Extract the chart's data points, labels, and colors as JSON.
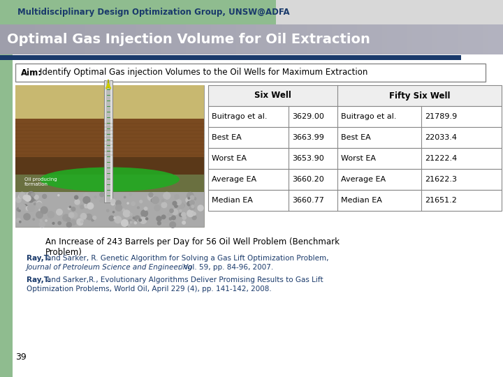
{
  "bg_color": "#ffffff",
  "left_strip_color": "#8fbc8f",
  "top_bar_left_color": "#8fbc8f",
  "top_bar_right_color": "#d0d0d0",
  "title_bar_color": "#a8a8b8",
  "title_text": "Optimal Gas Injection Volume for Oil Extraction",
  "title_color": "#ffffff",
  "top_label": "Multidisciplinary Design Optimization Group, UNSW@ADFA",
  "top_label_color": "#1a3a6b",
  "dark_bar_color": "#1a3a6b",
  "aim_border": "#888888",
  "table_six_well_header": "Six Well",
  "table_fifty_six_header": "Fifty Six Well",
  "table_rows": [
    [
      "Buitrago et al.",
      "3629.00",
      "Buitrago et al.",
      "21789.9"
    ],
    [
      "Best EA",
      "3663.99",
      "Best EA",
      "22033.4"
    ],
    [
      "Worst EA",
      "3653.90",
      "Worst EA",
      "21222.4"
    ],
    [
      "Average EA",
      "3660.20",
      "Average EA",
      "21622.3"
    ],
    [
      "Median EA",
      "3660.77",
      "Median EA",
      "21651.2"
    ]
  ],
  "increase_text": "An Increase of 243 Barrels per Day for 56 Oil Well Problem (Benchmark\nProblem)",
  "ref_text_color": "#1a3a6b",
  "page_num": "39",
  "white": "#ffffff",
  "black": "#000000",
  "table_border_color": "#888888"
}
